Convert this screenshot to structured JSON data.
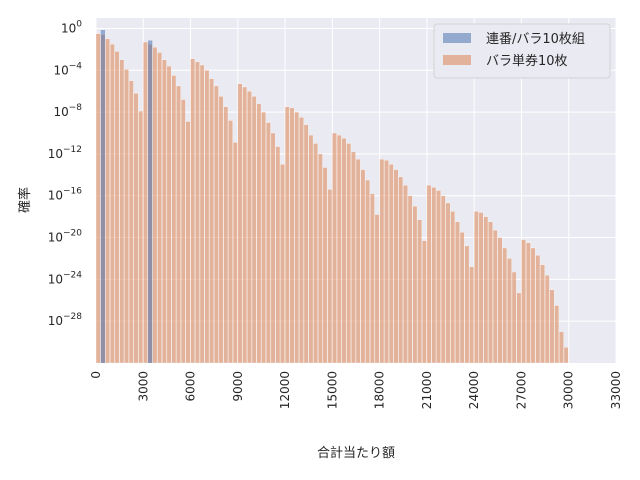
{
  "chart_data": {
    "type": "bar",
    "title": "",
    "xlabel": "合計当たり額",
    "ylabel": "確率",
    "y_scale": "log",
    "xlim": [
      0,
      33000
    ],
    "ylim_exponent": [
      -32,
      1
    ],
    "xticks": [
      0,
      3000,
      6000,
      9000,
      12000,
      15000,
      18000,
      21000,
      24000,
      27000,
      30000,
      33000
    ],
    "xtick_labels": [
      "0",
      "3000",
      "6000",
      "9000",
      "12000",
      "15000",
      "18000",
      "21000",
      "24000",
      "27000",
      "30000",
      "33000"
    ],
    "yticks_exponent": [
      0,
      -4,
      -8,
      -12,
      -16,
      -20,
      -24,
      -28
    ],
    "ytick_labels": [
      "10^0",
      "10^-4",
      "10^-8",
      "10^-12",
      "10^-16",
      "10^-20",
      "10^-24",
      "10^-28"
    ],
    "grid": true,
    "legend_position": "top-right",
    "bin_width": 300,
    "series": [
      {
        "name": "連番/バラ10枚組",
        "color": "#4c72b0",
        "bins": [
          {
            "x": 300,
            "log10_p": -0.15
          },
          {
            "x": 3300,
            "log10_p": -1.15
          }
        ]
      },
      {
        "name": "バラ単券10枚",
        "color": "#dd8452",
        "bins_start": 0,
        "log10_p": [
          -0.5,
          -0.6,
          -1.0,
          -1.5,
          -2.2,
          -3.0,
          -3.9,
          -5.0,
          -6.2,
          -7.9,
          -1.3,
          -1.5,
          -1.8,
          -2.3,
          -3.0,
          -3.6,
          -4.5,
          -5.5,
          -6.8,
          -8.9,
          -2.9,
          -3.2,
          -3.5,
          -4.0,
          -4.8,
          -5.5,
          -6.5,
          -7.5,
          -8.8,
          -10.9,
          -5.3,
          -5.6,
          -6.0,
          -6.5,
          -7.2,
          -8.0,
          -9.0,
          -10.0,
          -11.3,
          -13.0,
          -7.5,
          -7.6,
          -8.0,
          -8.5,
          -9.2,
          -10.2,
          -11.0,
          -12.0,
          -13.3,
          -15.4,
          -10.0,
          -10.2,
          -10.5,
          -11.0,
          -11.8,
          -12.5,
          -13.5,
          -14.5,
          -15.8,
          -17.8,
          -12.5,
          -12.6,
          -13.0,
          -13.5,
          -14.2,
          -15.0,
          -16.0,
          -17.0,
          -18.3,
          -20.3,
          -15.0,
          -15.2,
          -15.5,
          -16.0,
          -16.7,
          -17.5,
          -18.5,
          -19.5,
          -20.8,
          -22.8,
          -17.5,
          -17.6,
          -18.0,
          -18.5,
          -19.3,
          -20.0,
          -21.0,
          -22.0,
          -23.3,
          -25.3,
          -20.2,
          -20.5,
          -21.0,
          -21.7,
          -22.6,
          -23.6,
          -25.0,
          -26.5,
          -29.0,
          -30.5
        ]
      }
    ]
  }
}
